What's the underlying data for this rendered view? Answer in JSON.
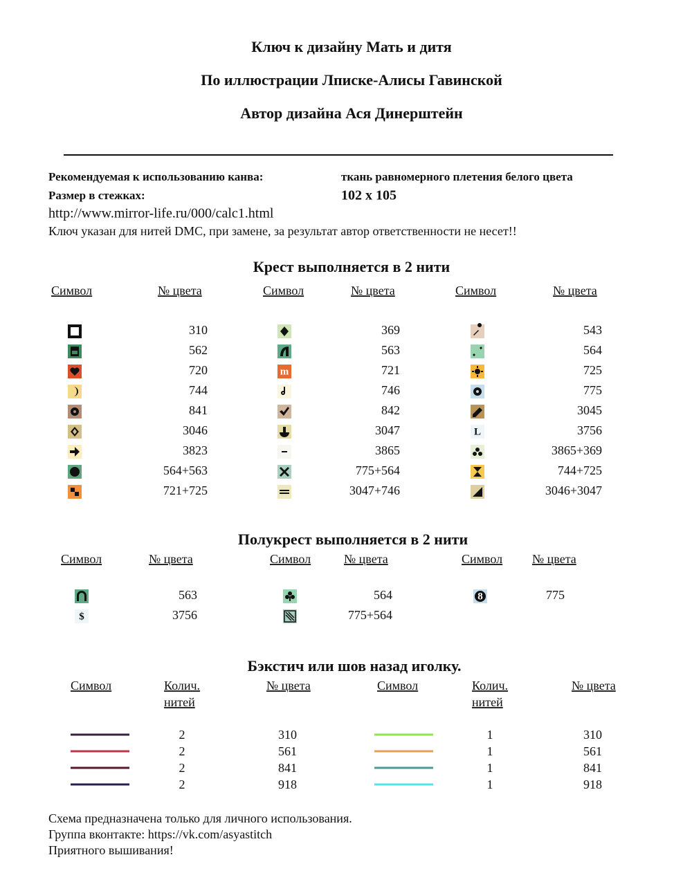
{
  "header": {
    "title": "Ключ к дизайну Мать и дитя",
    "subtitle": "По иллюстрации Лписке-Алисы Гавинской",
    "author": "Автор дизайна Ася Динерштейн"
  },
  "info": {
    "canvas_label": "Рекомендуемая к использованию канва:",
    "canvas_value": "ткань  равномерного плетения белого цвета",
    "size_label": "Размер в стежках:",
    "size_value": "102 х 105",
    "link": "http://www.mirror-life.ru/000/calc1.html",
    "note": "Ключ указан для нитей DMC, при замене, за результат автор ответственности не несет!!"
  },
  "cross": {
    "heading": "Крест выполняется в 2 нити",
    "headers": [
      "Символ",
      "№ цвета",
      "Символ",
      "№ цвета",
      "Символ",
      "№ цвета"
    ],
    "columns": [
      [
        {
          "color": "#ffffff",
          "number": 310
        },
        {
          "color": "#3c8a5e",
          "number": 562
        },
        {
          "color": "#d9502a",
          "number": 720
        },
        {
          "color": "#f6d98a",
          "number": 744
        },
        {
          "color": "#b38c74",
          "number": 841
        },
        {
          "color": "#d4bf84",
          "number": 3046
        },
        {
          "color": "#fbeebc",
          "number": 3823
        },
        {
          "color": "#5fa680",
          "number": "564+563"
        },
        {
          "color": "#f08f3c",
          "number": "721+725"
        }
      ],
      [
        {
          "color": "#cfe5b8",
          "number": 369
        },
        {
          "color": "#5faa86",
          "number": 563
        },
        {
          "color": "#e76a30",
          "number": 721,
          "glyph": "m"
        },
        {
          "color": "#fbf6df",
          "number": 746
        },
        {
          "color": "#cfb59b",
          "number": 842
        },
        {
          "color": "#e6dba6",
          "number": 3047
        },
        {
          "color": "#f8f6f0",
          "number": 3865
        },
        {
          "color": "#a8cfc0",
          "number": "775+564"
        },
        {
          "color": "#efe7bd",
          "number": "3047+746"
        }
      ],
      [
        {
          "color": "#e6cfbd",
          "number": 543
        },
        {
          "color": "#98d4b0",
          "number": 564
        },
        {
          "color": "#f5b83b",
          "number": 725
        },
        {
          "color": "#c5dcea",
          "number": 775
        },
        {
          "color": "#b8935a",
          "number": 3045
        },
        {
          "color": "#eef6fa",
          "number": 3756,
          "glyph": "L"
        },
        {
          "color": "#e6efd8",
          "number": "3865+369"
        },
        {
          "color": "#f7c94e",
          "number": "744+725"
        },
        {
          "color": "#ddcfa0",
          "number": "3046+3047"
        }
      ]
    ]
  },
  "half": {
    "heading": "Полукрест выполняется в 2 нити",
    "headers": [
      "Символ",
      "№ цвета",
      "Символ",
      "№ цвета",
      "Символ",
      "№ цвета"
    ],
    "columns": [
      [
        {
          "color": "#5faa86",
          "number": 563
        },
        {
          "color": "#eef6fa",
          "number": 3756,
          "glyph": "$"
        }
      ],
      [
        {
          "color": "#98d4b0",
          "number": 564
        },
        {
          "color": "#a8cfc0",
          "number": "775+564"
        }
      ],
      [
        {
          "color": "#c5dcea",
          "number": 775,
          "glyph": "8"
        }
      ]
    ]
  },
  "back": {
    "heading": "Бэкстич или шов назад иголку.",
    "headers": [
      "Символ",
      [
        "Колич.",
        "нитей"
      ],
      "№ цвета",
      "Символ",
      [
        "Колич.",
        "нитей"
      ],
      "№ цвета"
    ],
    "columns": [
      [
        {
          "color": "#3a1f3f",
          "count": 2,
          "number": 310
        },
        {
          "color": "#c0344a",
          "count": 2,
          "number": 561
        },
        {
          "color": "#5a1a2a",
          "count": 2,
          "number": 841
        },
        {
          "color": "#2a2050",
          "count": 2,
          "number": 918
        }
      ],
      [
        {
          "color": "#8ee64a",
          "count": 1,
          "number": 310
        },
        {
          "color": "#e8a050",
          "count": 1,
          "number": 561
        },
        {
          "color": "#4a9a9a",
          "count": 1,
          "number": 841
        },
        {
          "color": "#4ae8e8",
          "count": 1,
          "number": 918
        }
      ]
    ]
  },
  "footer": {
    "line1": "Схема предназначена только для личного использования.",
    "line2": "Группа вконтакте: https://vk.com/asyastitch",
    "line3": "Приятного вышивания!"
  }
}
